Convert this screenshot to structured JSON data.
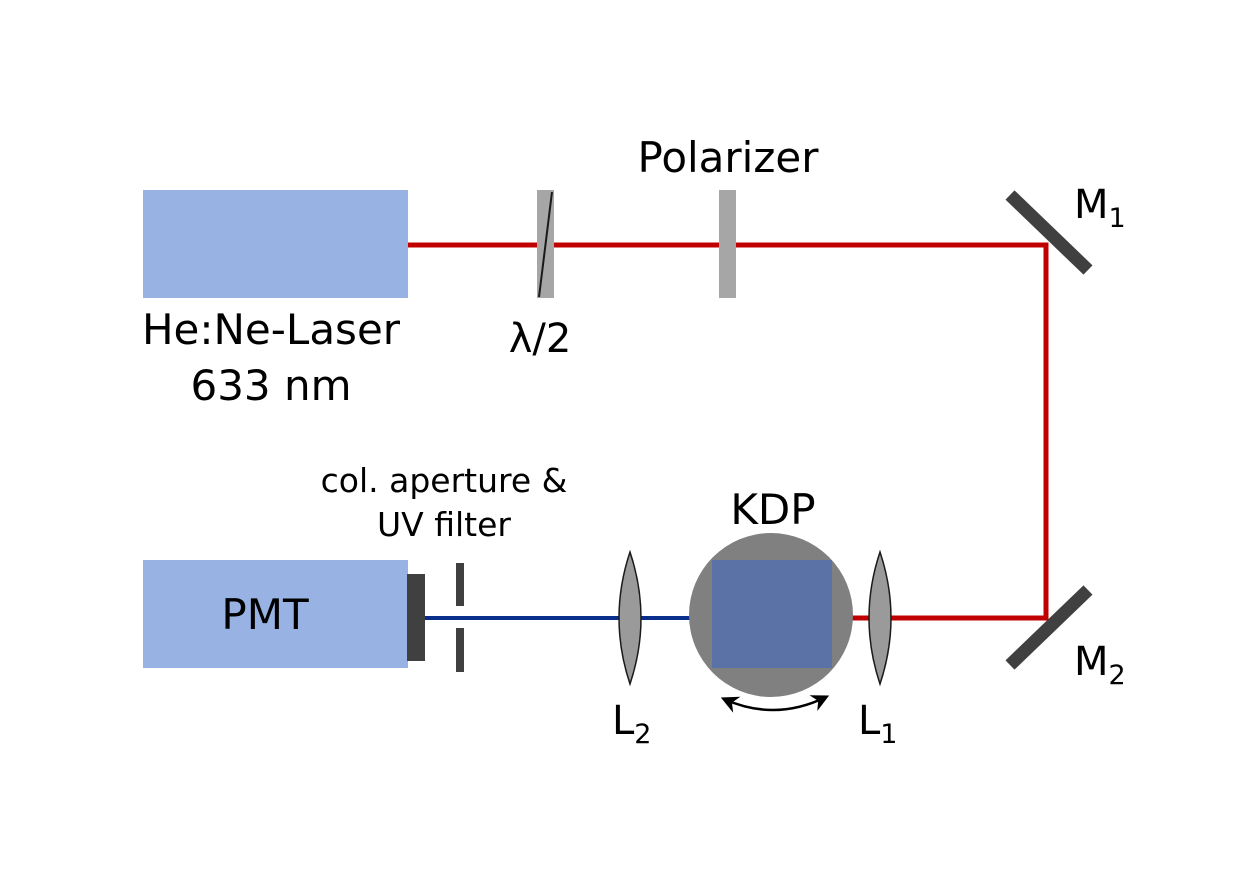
{
  "colors": {
    "background": "#ffffff",
    "box": "#98b3e3",
    "red_beam": "#c00000",
    "blue_beam": "#0a2f8a",
    "optic_gray": "#a6a6a6",
    "mirror_dark": "#404040",
    "crystal_holder": "#808080",
    "crystal": "#5a72a6",
    "lens": "#9a9a9a"
  },
  "labels": {
    "laser_line1": "He:Ne-Laser",
    "laser_line2": "633 nm",
    "halfwave": "λ/2",
    "polarizer": "Polarizer",
    "mirror1_main": "M",
    "mirror1_sub": "1",
    "mirror2_main": "M",
    "mirror2_sub": "2",
    "aperture_line1": "col. aperture &",
    "aperture_line2": "UV filter",
    "kdp": "KDP",
    "pmt": "PMT",
    "lens1_main": "L",
    "lens1_sub": "1",
    "lens2_main": "L",
    "lens2_sub": "2"
  },
  "icons": {
    "rotation": "double-arrow-icon"
  }
}
